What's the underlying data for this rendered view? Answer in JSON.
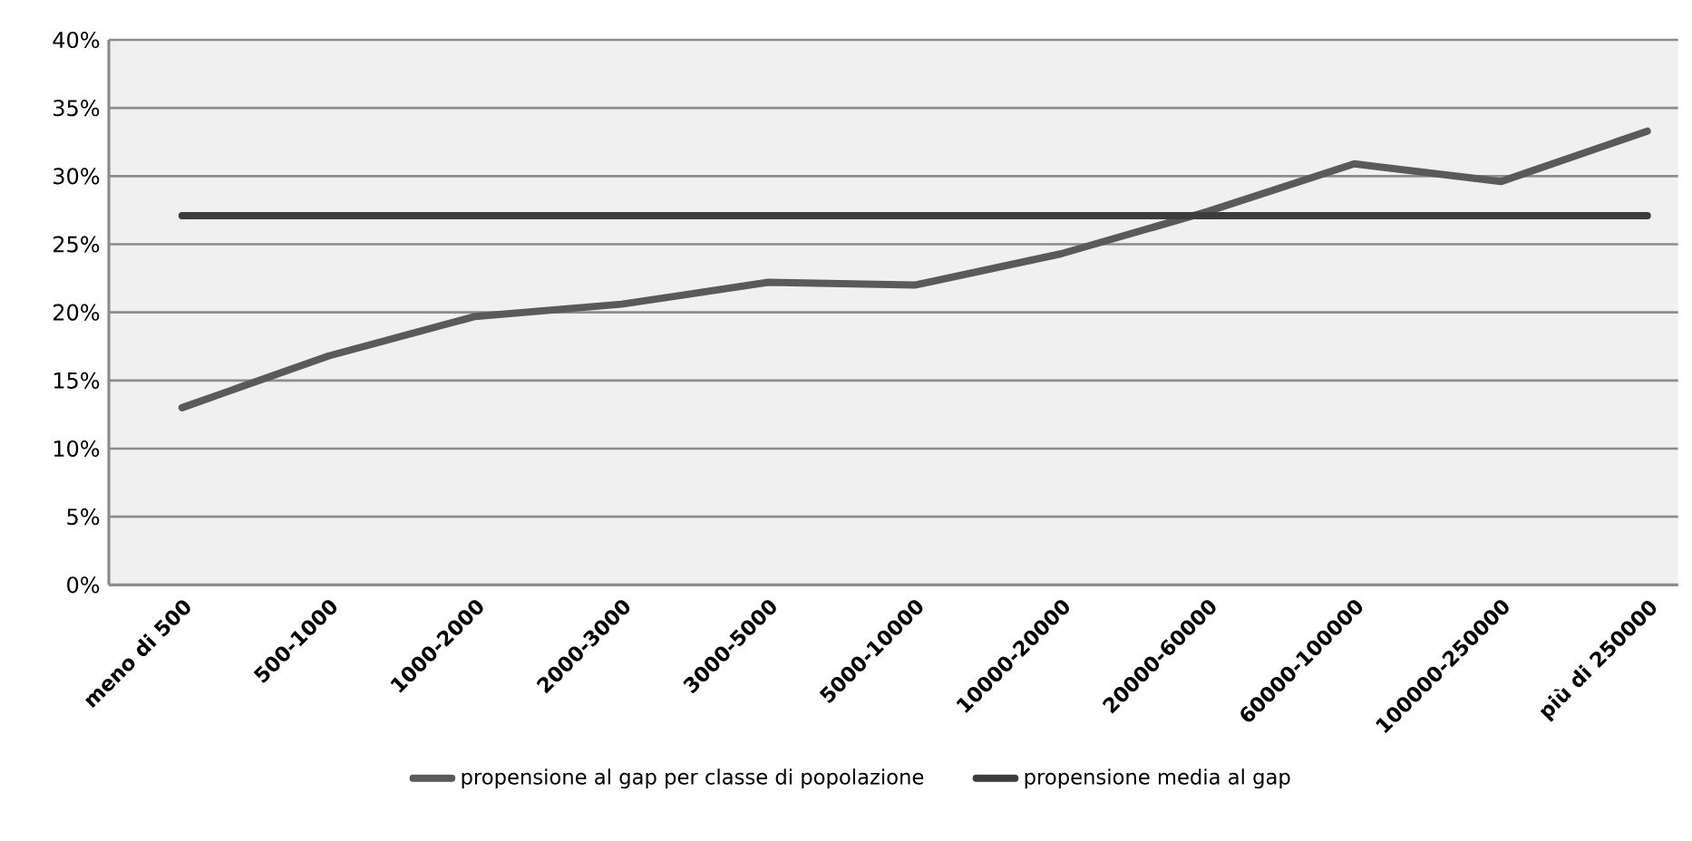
{
  "chart_data": {
    "type": "line",
    "categories": [
      "meno di 500",
      "500-1000",
      "1000-2000",
      "2000-3000",
      "3000-5000",
      "5000-10000",
      "10000-20000",
      "20000-60000",
      "60000-100000",
      "100000-250000",
      "più di 250000"
    ],
    "series": [
      {
        "name": "propensione al gap per classe di popolazione",
        "color": "#5a5a5a",
        "values": [
          13.0,
          16.8,
          19.7,
          20.6,
          22.2,
          22.0,
          24.3,
          27.4,
          30.9,
          29.6,
          33.3
        ]
      },
      {
        "name": "propensione media al gap",
        "color": "#3c3c3c",
        "values": [
          27.1,
          27.1,
          27.1,
          27.1,
          27.1,
          27.1,
          27.1,
          27.1,
          27.1,
          27.1,
          27.1
        ]
      }
    ],
    "ylim": [
      0,
      40
    ],
    "yticks": [
      {
        "value": 0,
        "label": "0%"
      },
      {
        "value": 5,
        "label": "5%"
      },
      {
        "value": 10,
        "label": "10%"
      },
      {
        "value": 15,
        "label": "15%"
      },
      {
        "value": 20,
        "label": "20%"
      },
      {
        "value": 25,
        "label": "25%"
      },
      {
        "value": 30,
        "label": "30%"
      },
      {
        "value": 35,
        "label": "35%"
      },
      {
        "value": 40,
        "label": "40%"
      }
    ],
    "grid": "y",
    "legend": "bottom",
    "marker": "none",
    "line_style": "solid"
  }
}
